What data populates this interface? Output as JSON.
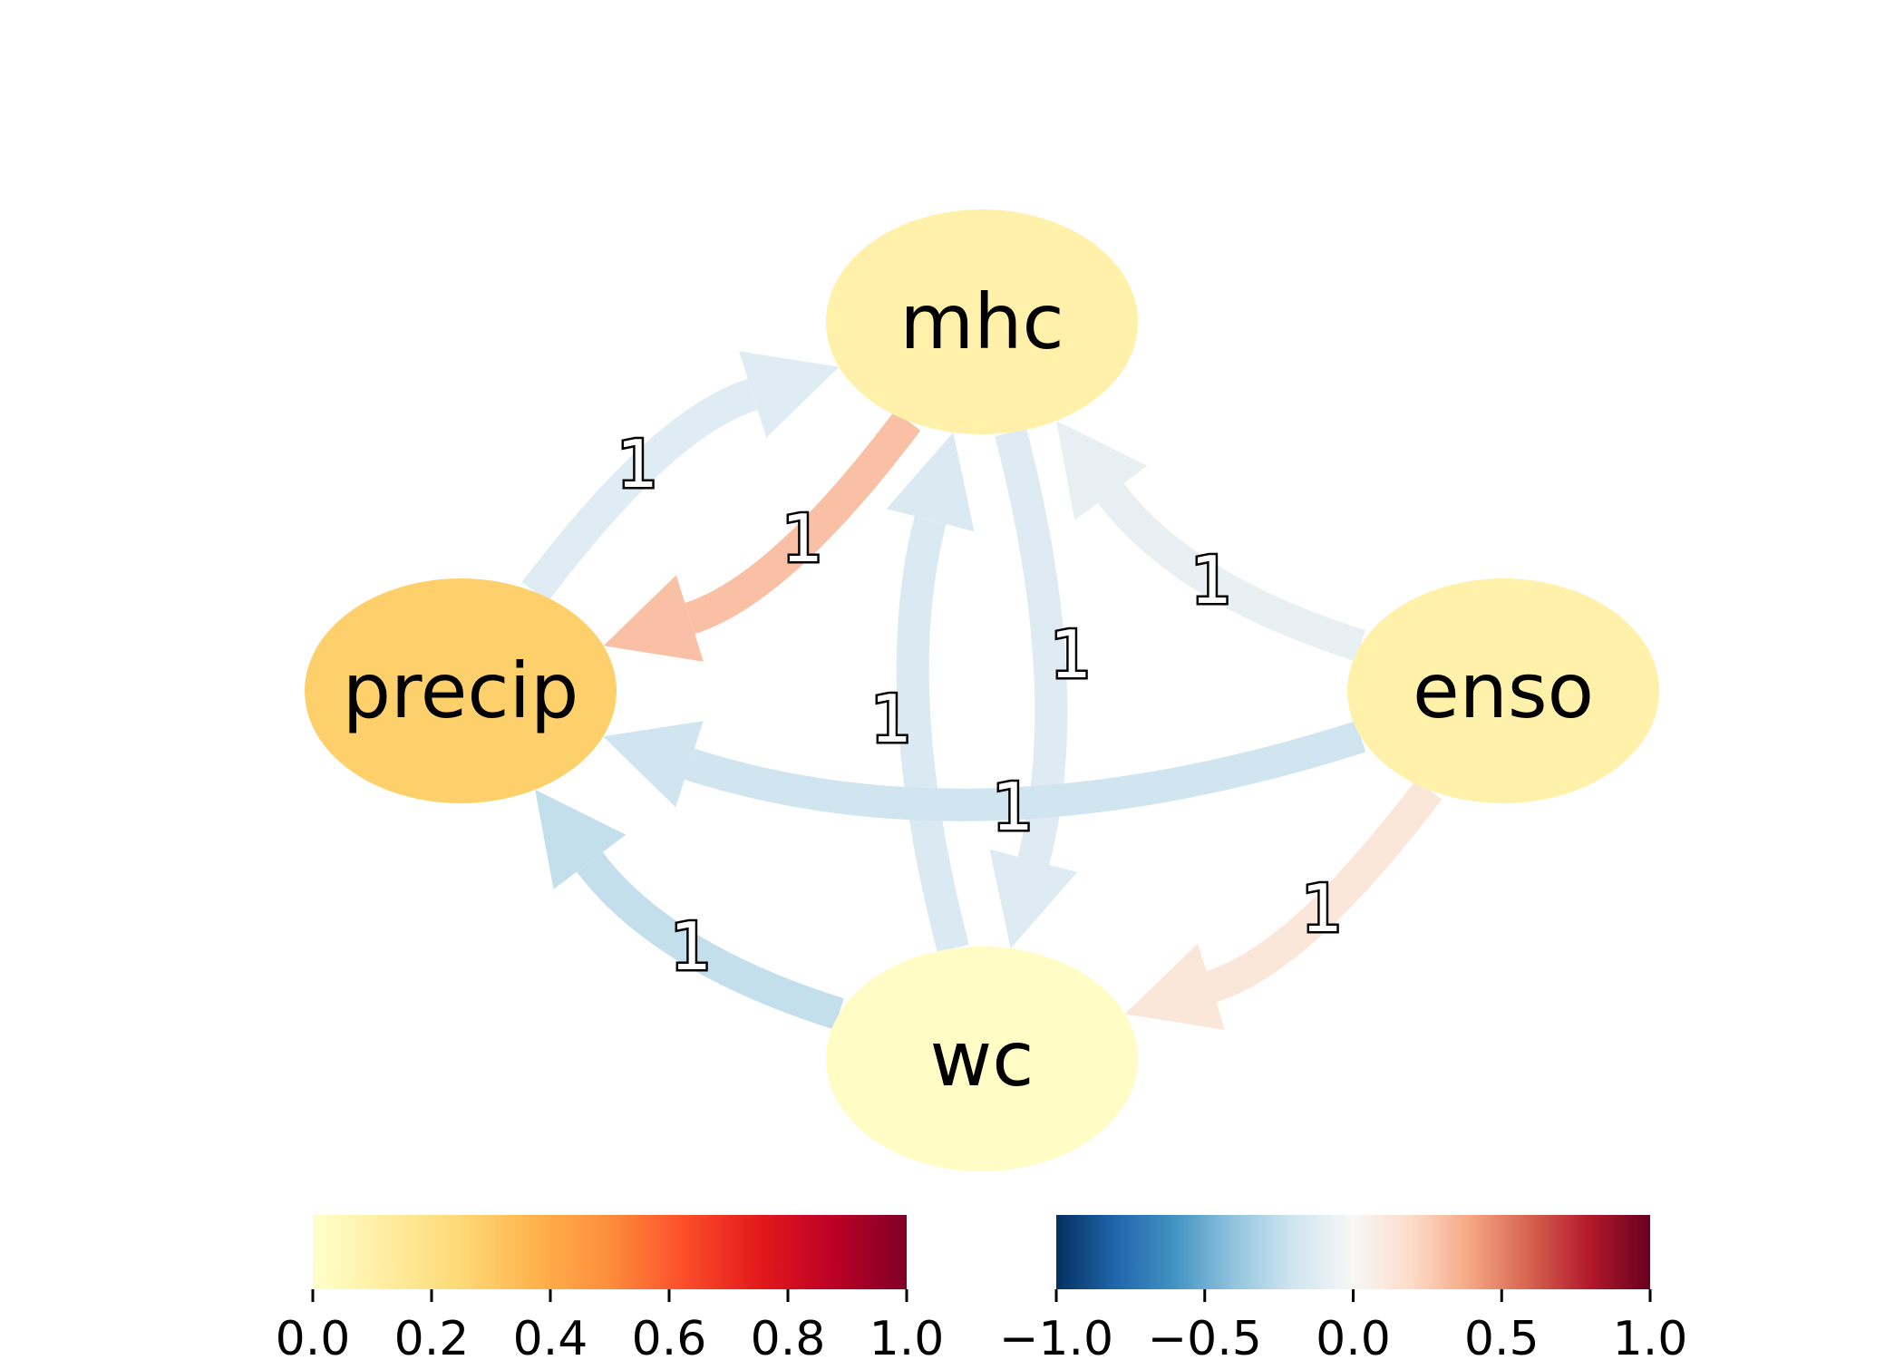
{
  "graph": {
    "nodes": [
      {
        "id": "mhc",
        "label": "mhc",
        "value": 0.1
      },
      {
        "id": "precip",
        "label": "precip",
        "value": 0.28
      },
      {
        "id": "enso",
        "label": "enso",
        "value": 0.1
      },
      {
        "id": "wc",
        "label": "wc",
        "value": 0.02
      }
    ],
    "edges": [
      {
        "id": "precip-mhc",
        "source": "precip",
        "target": "mhc",
        "label": "1",
        "value": -0.12
      },
      {
        "id": "mhc-precip",
        "source": "mhc",
        "target": "precip",
        "label": "1",
        "value": 0.3
      },
      {
        "id": "enso-mhc",
        "source": "enso",
        "target": "mhc",
        "label": "1",
        "value": -0.08
      },
      {
        "id": "mhc-wc",
        "source": "mhc",
        "target": "wc",
        "label": "1",
        "value": -0.13
      },
      {
        "id": "wc-mhc",
        "source": "wc",
        "target": "mhc",
        "label": "1",
        "value": -0.15
      },
      {
        "id": "enso-precip",
        "source": "enso",
        "target": "precip",
        "label": "1",
        "value": -0.2
      },
      {
        "id": "wc-precip",
        "source": "wc",
        "target": "precip",
        "label": "1",
        "value": -0.24
      },
      {
        "id": "enso-wc",
        "source": "enso",
        "target": "wc",
        "label": "1",
        "value": 0.12
      }
    ]
  },
  "colorbars": [
    {
      "id": "node-colorbar",
      "colormap": "YlOrRd",
      "range": [
        0.0,
        1.0
      ],
      "ticks": [
        "0.0",
        "0.2",
        "0.4",
        "0.6",
        "0.8",
        "1.0"
      ]
    },
    {
      "id": "edge-colorbar",
      "colormap": "RdBu_r",
      "range": [
        -1.0,
        1.0
      ],
      "ticks": [
        "−1.0",
        "−0.5",
        "0.0",
        "0.5",
        "1.0"
      ]
    }
  ]
}
